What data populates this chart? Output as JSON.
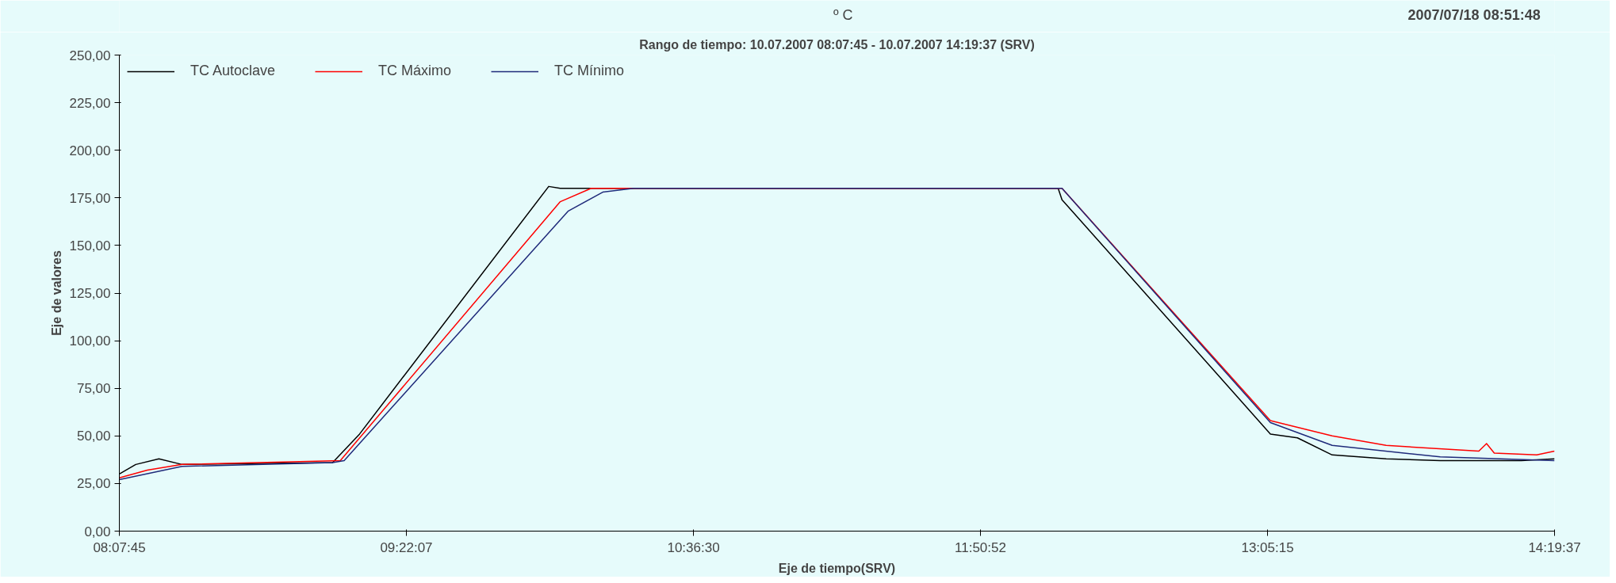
{
  "chart_data": {
    "type": "line",
    "title": "Rango de tiempo: 10.07.2007 08:07:45 - 10.07.2007 14:19:37 (SRV)",
    "xlabel": "Eje de tiempo(SRV)",
    "ylabel": "Eje de valores",
    "annotations": [
      "º C",
      "2007/07/18 08:51:48"
    ],
    "xlim": [
      "2007-07-10T08:07:45",
      "2007-07-10T14:19:37"
    ],
    "ylim": [
      0,
      250
    ],
    "xticks": [
      {
        "value": "2007-07-10T08:07:45",
        "label": "08:07:45"
      },
      {
        "value": "2007-07-10T09:22:07",
        "label": "09:22:07"
      },
      {
        "value": "2007-07-10T10:36:30",
        "label": "10:36:30"
      },
      {
        "value": "2007-07-10T11:50:52",
        "label": "11:50:52"
      },
      {
        "value": "2007-07-10T13:05:15",
        "label": "13:05:15"
      },
      {
        "value": "2007-07-10T14:19:37",
        "label": "14:19:37"
      }
    ],
    "yticks": [
      {
        "value": 0,
        "label": "0,00"
      },
      {
        "value": 25,
        "label": "25,00"
      },
      {
        "value": 50,
        "label": "50,00"
      },
      {
        "value": 75,
        "label": "75,00"
      },
      {
        "value": 100,
        "label": "100,00"
      },
      {
        "value": 125,
        "label": "125,00"
      },
      {
        "value": 150,
        "label": "150,00"
      },
      {
        "value": 175,
        "label": "175,00"
      },
      {
        "value": 200,
        "label": "200,00"
      },
      {
        "value": 225,
        "label": "225,00"
      },
      {
        "value": 250,
        "label": "250,00"
      }
    ],
    "grid": false,
    "legend": "top",
    "marker": "none",
    "line_style": "solid",
    "series": [
      {
        "name": "TC Autoclave",
        "color": "#000000",
        "x": [
          "2007-07-10T08:07:45",
          "2007-07-10T08:12",
          "2007-07-10T08:18",
          "2007-07-10T08:24",
          "2007-07-10T09:03",
          "2007-07-10T09:10",
          "2007-07-10T09:59",
          "2007-07-10T10:02",
          "2007-07-10T12:11",
          "2007-07-10T12:12",
          "2007-07-10T13:06",
          "2007-07-10T13:13",
          "2007-07-10T13:22",
          "2007-07-10T13:36",
          "2007-07-10T13:50",
          "2007-07-10T14:11",
          "2007-07-10T14:19:37"
        ],
        "values": [
          30,
          35,
          38,
          35,
          36,
          51,
          181,
          180,
          180,
          174,
          51,
          49,
          40,
          38,
          37,
          37,
          38
        ]
      },
      {
        "name": "TC Máximo",
        "color": "#ff0000",
        "x": [
          "2007-07-10T08:07:45",
          "2007-07-10T08:15",
          "2007-07-10T08:24",
          "2007-07-10T09:05",
          "2007-07-10T10:02",
          "2007-07-10T10:10",
          "2007-07-10T12:12",
          "2007-07-10T13:06",
          "2007-07-10T13:12",
          "2007-07-10T13:22",
          "2007-07-10T13:36",
          "2007-07-10T14:00",
          "2007-07-10T14:02",
          "2007-07-10T14:04",
          "2007-07-10T14:15",
          "2007-07-10T14:19:37"
        ],
        "values": [
          28,
          32,
          35,
          37,
          173,
          180,
          180,
          58,
          55,
          50,
          45,
          42,
          46,
          41,
          40,
          42
        ]
      },
      {
        "name": "TC Mínimo",
        "color": "#1f2a7a",
        "x": [
          "2007-07-10T08:07:45",
          "2007-07-10T08:24",
          "2007-07-10T09:03",
          "2007-07-10T09:06",
          "2007-07-10T10:04",
          "2007-07-10T10:13",
          "2007-07-10T10:21",
          "2007-07-10T12:12",
          "2007-07-10T13:06",
          "2007-07-10T13:22",
          "2007-07-10T13:50",
          "2007-07-10T14:19:37"
        ],
        "values": [
          27,
          34,
          36,
          37,
          168,
          178,
          180,
          180,
          57,
          45,
          39,
          37
        ]
      }
    ]
  }
}
